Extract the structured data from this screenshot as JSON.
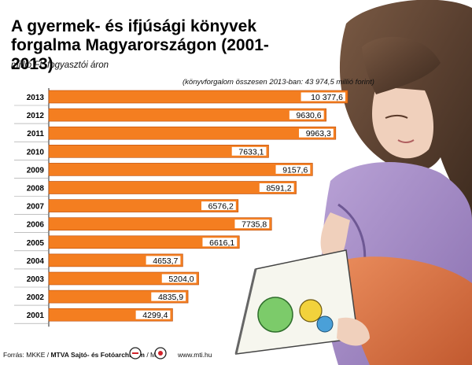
{
  "header": {
    "title": "A gyermek- és ifjúsági könyvek forgalma Magyarországon (2001-2013)",
    "unit": "millió Ft, fogyasztói áron",
    "total_note": "(könyvforgalom összesen 2013-ban: 43 974,5 millió forint)"
  },
  "footer": {
    "source_prefix": "Forrás: MKKE / ",
    "source_bold": "MTVA Sajtó- és Fotóarchívum",
    "source_suffix": " / MTI",
    "site": "www.mti.hu",
    "logo1_icon": "mtva-logo-icon",
    "logo2_icon": "mti-logo-icon"
  },
  "colors": {
    "bar": "#f47e20",
    "bar_edge": "#b84a08",
    "label_bg": "#ffffff"
  },
  "chart_data": {
    "type": "bar",
    "orientation": "horizontal",
    "categories": [
      "2013",
      "2012",
      "2011",
      "2010",
      "2009",
      "2008",
      "2007",
      "2006",
      "2005",
      "2004",
      "2003",
      "2002",
      "2001"
    ],
    "values": [
      10377.6,
      9630.6,
      9963.3,
      7633.1,
      9157.6,
      8591.2,
      6576.2,
      7735.8,
      6616.1,
      4653.7,
      5204.0,
      4835.9,
      4299.4
    ],
    "value_labels": [
      "10 377,6",
      "9630,6",
      "9963,3",
      "7633,1",
      "9157,6",
      "8591,2",
      "6576,2",
      "7735,8",
      "6616,1",
      "4653,7",
      "5204,0",
      "4835,9",
      "4299,4"
    ],
    "title": "A gyermek- és ifjúsági könyvek forgalma Magyarországon (2001-2013)",
    "xlabel": "",
    "ylabel": "",
    "xlim": [
      0,
      10377.6
    ],
    "grid": false,
    "legend": "none"
  }
}
